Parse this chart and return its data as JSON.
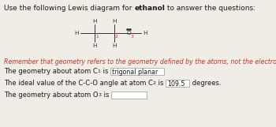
{
  "title_text": "Use the following Lewis diagram for ",
  "title_bold": "ethanol",
  "title_end": " to answer the questions:",
  "reminder_text": "Remember that geometry refers to the geometry defined by the atoms, not the electron pairs.",
  "line1_pre": "The geometry about atom C",
  "line1_sub1": "1",
  "line1_mid": " is ",
  "line1_box": "trigonal planar",
  "line2_pre": "The ideal value of the C-C-O angle at atom C",
  "line2_sub2": "2",
  "line2_mid": " is ",
  "line2_box": "109.5",
  "line2_end": " degrees.",
  "line3_pre": "The geometry about atom O",
  "line3_sub3": "3",
  "line3_mid": " is ",
  "bg_color": "#f0ece6",
  "reminder_color": "#c0392b",
  "text_color": "#1a1a1a",
  "box_border": "#999999"
}
